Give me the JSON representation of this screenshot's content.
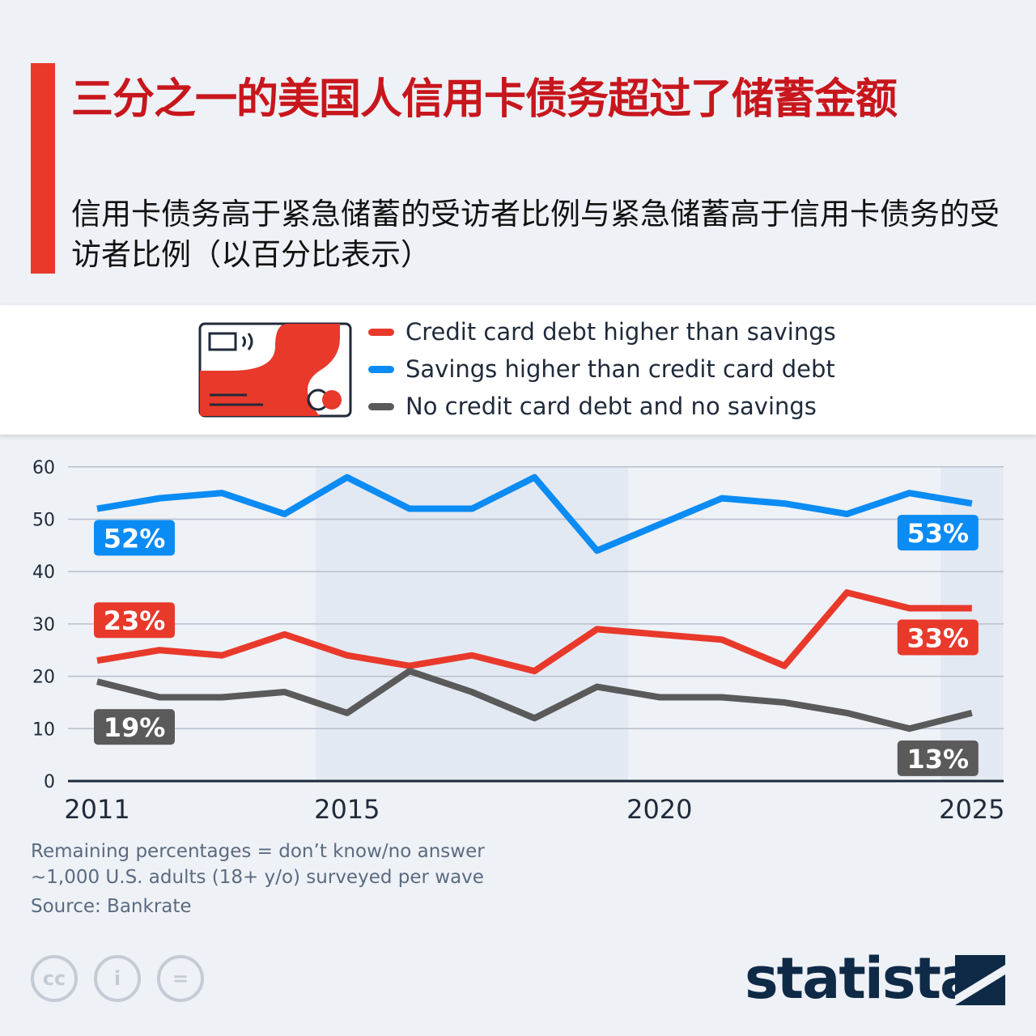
{
  "header": {
    "title": "三分之一的美国人信用卡债务超过了储蓄金额",
    "subtitle": "信用卡债务高于紧急储蓄的受访者比例与紧急储蓄高于信用卡债务的受访者比例（以百分比表示）"
  },
  "footer": {
    "note1": "Remaining percentages = don’t know/no answer",
    "note2": "~1,000 U.S. adults (18+ y/o) surveyed per wave",
    "source": "Source: Bankrate",
    "logo": "statista"
  },
  "chart_data": {
    "type": "line",
    "x": [
      2011,
      2012,
      2013,
      2014,
      2015,
      2016,
      2017,
      2018,
      2019,
      2020,
      2021,
      2022,
      2023,
      2024,
      2025
    ],
    "xticks": [
      "2011",
      "2015",
      "2020",
      "2025"
    ],
    "yticks": [
      "0",
      "10",
      "20",
      "30",
      "40",
      "50",
      "60"
    ],
    "ylim": [
      0,
      60
    ],
    "grid": true,
    "legend_placement": "top",
    "shaded_ranges": [
      [
        2014.5,
        2019.5
      ],
      [
        2024.5,
        2025.5
      ]
    ],
    "series": [
      {
        "name": "Credit card debt higher than savings",
        "color": "#e8392b",
        "values": [
          23,
          25,
          24,
          28,
          24,
          22,
          24,
          21,
          29,
          28,
          27,
          22,
          36,
          33,
          33
        ],
        "start_label": "23%",
        "end_label": "33%"
      },
      {
        "name": "Savings higher than credit card debt",
        "color": "#0b8bf4",
        "values": [
          52,
          54,
          55,
          51,
          58,
          52,
          52,
          58,
          44,
          49,
          54,
          53,
          51,
          55,
          53
        ],
        "start_label": "52%",
        "end_label": "53%"
      },
      {
        "name": "No credit card debt and no savings",
        "color": "#5a5a5a",
        "values": [
          19,
          16,
          16,
          17,
          13,
          21,
          17,
          12,
          18,
          16,
          16,
          15,
          13,
          10,
          13
        ],
        "start_label": "19%",
        "end_label": "13%"
      }
    ]
  }
}
